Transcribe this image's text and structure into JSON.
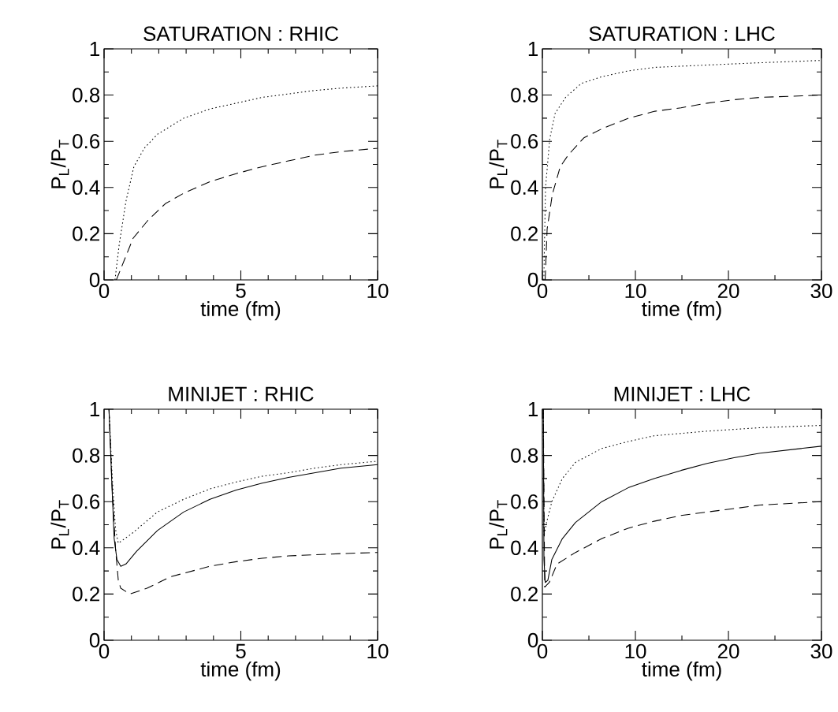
{
  "chart_data": [
    {
      "type": "line",
      "title": "SATURATION : RHIC",
      "xlabel": "time (fm)",
      "ylabel": "P$_{L}$/P$_{T}$",
      "xlim": [
        0,
        10
      ],
      "ylim": [
        0,
        1
      ],
      "xticks": [
        0,
        {
          "value": 1,
          "label": null
        },
        {
          "value": 2,
          "label": null
        },
        {
          "value": 3,
          "label": null
        },
        {
          "value": 4,
          "label": null
        },
        5,
        {
          "value": 6,
          "label": null
        },
        {
          "value": 7,
          "label": null
        },
        {
          "value": 8,
          "label": null
        },
        {
          "value": 9,
          "label": null
        },
        10
      ],
      "yticks": [
        0,
        {
          "value": 0.1,
          "label": null
        },
        0.2,
        {
          "value": 0.3,
          "label": null
        },
        0.4,
        {
          "value": 0.5,
          "label": null
        },
        0.6,
        {
          "value": 0.7,
          "label": null
        },
        0.8,
        {
          "value": 0.9,
          "label": null
        },
        1
      ],
      "series": [
        {
          "color": "#000000",
          "line_style": "dotted",
          "x": [
            0.4,
            0.55,
            0.8,
            1.09,
            1.47,
            1.95,
            2.91,
            3.87,
            4.83,
            5.78,
            6.74,
            7.7,
            8.66,
            10
          ],
          "values": [
            0,
            0.15,
            0.34,
            0.49,
            0.57,
            0.63,
            0.7,
            0.74,
            0.765,
            0.79,
            0.805,
            0.82,
            0.83,
            0.84
          ]
        },
        {
          "color": "#000000",
          "line_style": "dashed",
          "x": [
            0.45,
            1.06,
            1.62,
            2.24,
            2.91,
            3.87,
            4.83,
            5.78,
            6.74,
            7.7,
            8.66,
            10
          ],
          "values": [
            0,
            0.18,
            0.26,
            0.33,
            0.375,
            0.425,
            0.46,
            0.49,
            0.515,
            0.54,
            0.555,
            0.57
          ]
        }
      ]
    },
    {
      "type": "line",
      "title": "SATURATION : LHC",
      "xlabel": "time (fm)",
      "ylabel": "P$_{L}$/P$_{T}$",
      "xlim": [
        0,
        30
      ],
      "ylim": [
        0,
        1
      ],
      "xticks": [
        0,
        {
          "value": 5,
          "label": null
        },
        10,
        {
          "value": 15,
          "label": null
        },
        20,
        {
          "value": 25,
          "label": null
        },
        30
      ],
      "yticks": [
        0,
        {
          "value": 0.1,
          "label": null
        },
        0.2,
        {
          "value": 0.3,
          "label": null
        },
        0.4,
        {
          "value": 0.5,
          "label": null
        },
        0.6,
        {
          "value": 0.7,
          "label": null
        },
        0.8,
        {
          "value": 0.9,
          "label": null
        },
        1
      ],
      "series": [
        {
          "color": "#000000",
          "line_style": "dotted",
          "x": [
            0.15,
            0.34,
            0.79,
            1.36,
            2.49,
            4.18,
            6.44,
            9.27,
            12.1,
            17.7,
            23.4,
            30
          ],
          "values": [
            0,
            0.4,
            0.61,
            0.72,
            0.79,
            0.85,
            0.88,
            0.905,
            0.92,
            0.93,
            0.94,
            0.95
          ]
        },
        {
          "color": "#000000",
          "line_style": "dashed",
          "x": [
            0.3,
            0.51,
            1.07,
            1.92,
            2.77,
            4.46,
            6.44,
            9.27,
            12.1,
            14.9,
            17.7,
            20.6,
            23.4,
            30
          ],
          "values": [
            0,
            0.22,
            0.37,
            0.49,
            0.54,
            0.615,
            0.655,
            0.7,
            0.73,
            0.745,
            0.765,
            0.78,
            0.79,
            0.8
          ]
        }
      ]
    },
    {
      "type": "line",
      "title": "MINIJET : RHIC",
      "xlabel": "time (fm)",
      "ylabel": "P$_{L}$/P$_{T}$",
      "xlim": [
        0,
        10
      ],
      "ylim": [
        0,
        1
      ],
      "xticks": [
        0,
        {
          "value": 1,
          "label": null
        },
        {
          "value": 2,
          "label": null
        },
        {
          "value": 3,
          "label": null
        },
        {
          "value": 4,
          "label": null
        },
        5,
        {
          "value": 6,
          "label": null
        },
        {
          "value": 7,
          "label": null
        },
        {
          "value": 8,
          "label": null
        },
        {
          "value": 9,
          "label": null
        },
        10
      ],
      "yticks": [
        0,
        {
          "value": 0.1,
          "label": null
        },
        0.2,
        {
          "value": 0.3,
          "label": null
        },
        0.4,
        {
          "value": 0.5,
          "label": null
        },
        0.6,
        {
          "value": 0.7,
          "label": null
        },
        0.8,
        {
          "value": 0.9,
          "label": null
        },
        1
      ],
      "series": [
        {
          "color": "#000000",
          "line_style": "solid",
          "x": [
            0.18,
            0.28,
            0.37,
            0.47,
            0.61,
            0.8,
            1.19,
            1.95,
            2.91,
            3.87,
            4.83,
            5.78,
            6.74,
            7.7,
            8.66,
            10
          ],
          "values": [
            1,
            0.69,
            0.44,
            0.35,
            0.32,
            0.33,
            0.385,
            0.475,
            0.555,
            0.61,
            0.65,
            0.68,
            0.705,
            0.725,
            0.745,
            0.76
          ]
        },
        {
          "color": "#000000",
          "line_style": "dotted",
          "x": [
            0.18,
            0.3,
            0.42,
            0.52,
            1.0,
            1.95,
            2.91,
            3.87,
            4.83,
            5.78,
            6.74,
            7.7,
            8.66,
            10
          ],
          "values": [
            1,
            0.7,
            0.48,
            0.42,
            0.46,
            0.555,
            0.61,
            0.655,
            0.685,
            0.71,
            0.725,
            0.745,
            0.76,
            0.775
          ]
        },
        {
          "color": "#000000",
          "line_style": "dashed",
          "x": [
            0.18,
            0.3,
            0.42,
            0.52,
            0.61,
            0.95,
            1.57,
            2.43,
            3.87,
            4.83,
            5.78,
            6.74,
            7.7,
            8.66,
            10
          ],
          "values": [
            1,
            0.65,
            0.395,
            0.26,
            0.225,
            0.2,
            0.225,
            0.275,
            0.32,
            0.34,
            0.355,
            0.365,
            0.37,
            0.375,
            0.38
          ]
        }
      ]
    },
    {
      "type": "line",
      "title": "MINIJET : LHC",
      "xlabel": "time (fm)",
      "ylabel": "P$_{L}$/P$_{T}$",
      "xlim": [
        0,
        30
      ],
      "ylim": [
        0,
        1
      ],
      "xticks": [
        0,
        {
          "value": 5,
          "label": null
        },
        10,
        {
          "value": 15,
          "label": null
        },
        20,
        {
          "value": 25,
          "label": null
        },
        30
      ],
      "yticks": [
        0,
        {
          "value": 0.1,
          "label": null
        },
        0.2,
        {
          "value": 0.3,
          "label": null
        },
        0.4,
        {
          "value": 0.5,
          "label": null
        },
        0.6,
        {
          "value": 0.7,
          "label": null
        },
        0.8,
        {
          "value": 0.9,
          "label": null
        },
        1
      ],
      "series": [
        {
          "color": "#000000",
          "line_style": "dotted",
          "x": [
            0.1,
            0.17,
            0.45,
            1.02,
            2.15,
            3.56,
            6.39,
            9.22,
            12,
            17.7,
            23.4,
            30
          ],
          "values": [
            1,
            0.45,
            0.51,
            0.6,
            0.7,
            0.77,
            0.83,
            0.86,
            0.885,
            0.905,
            0.92,
            0.93
          ]
        },
        {
          "color": "#000000",
          "line_style": "solid",
          "x": [
            0.1,
            0.17,
            0.31,
            0.59,
            1.02,
            2.15,
            3.56,
            6.39,
            9.22,
            12,
            14.9,
            17.7,
            20.6,
            23.4,
            30
          ],
          "values": [
            1,
            0.35,
            0.25,
            0.26,
            0.35,
            0.44,
            0.51,
            0.6,
            0.66,
            0.7,
            0.735,
            0.765,
            0.79,
            0.81,
            0.84
          ]
        },
        {
          "color": "#000000",
          "line_style": "dashed",
          "x": [
            0.1,
            0.25,
            0.74,
            1.58,
            3.56,
            6.39,
            9.22,
            12,
            14.9,
            17.7,
            20.6,
            23.4,
            30
          ],
          "values": [
            1,
            0.23,
            0.25,
            0.33,
            0.38,
            0.44,
            0.485,
            0.515,
            0.54,
            0.555,
            0.57,
            0.585,
            0.6
          ]
        }
      ]
    }
  ]
}
